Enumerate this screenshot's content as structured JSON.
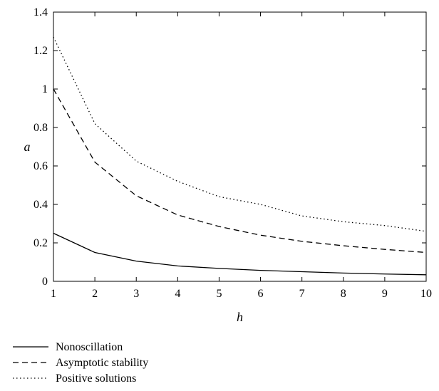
{
  "chart_data": {
    "type": "line",
    "xlabel": "h",
    "ylabel": "a",
    "xlim": [
      1,
      10
    ],
    "ylim": [
      0,
      1.4
    ],
    "x_ticks": [
      "1",
      "2",
      "3",
      "4",
      "5",
      "6",
      "7",
      "8",
      "9",
      "10"
    ],
    "y_ticks": [
      "0",
      "0.2",
      "0.4",
      "0.6",
      "0.8",
      "1",
      "1.2",
      "1.4"
    ],
    "grid": false,
    "legend_position": "bottom-left",
    "x": [
      1,
      2,
      3,
      4,
      5,
      6,
      7,
      8,
      9,
      10
    ],
    "series": [
      {
        "name": "Nonoscillation",
        "style": "solid",
        "values": [
          0.25,
          0.15,
          0.105,
          0.08,
          0.067,
          0.057,
          0.05,
          0.043,
          0.038,
          0.034
        ]
      },
      {
        "name": "Asymptotic stability",
        "style": "dashed",
        "values": [
          1.0,
          0.62,
          0.445,
          0.345,
          0.285,
          0.24,
          0.208,
          0.185,
          0.166,
          0.15
        ]
      },
      {
        "name": "Positive solutions",
        "style": "dotted",
        "values": [
          1.27,
          0.82,
          0.625,
          0.52,
          0.44,
          0.4,
          0.34,
          0.31,
          0.29,
          0.26
        ]
      }
    ]
  }
}
